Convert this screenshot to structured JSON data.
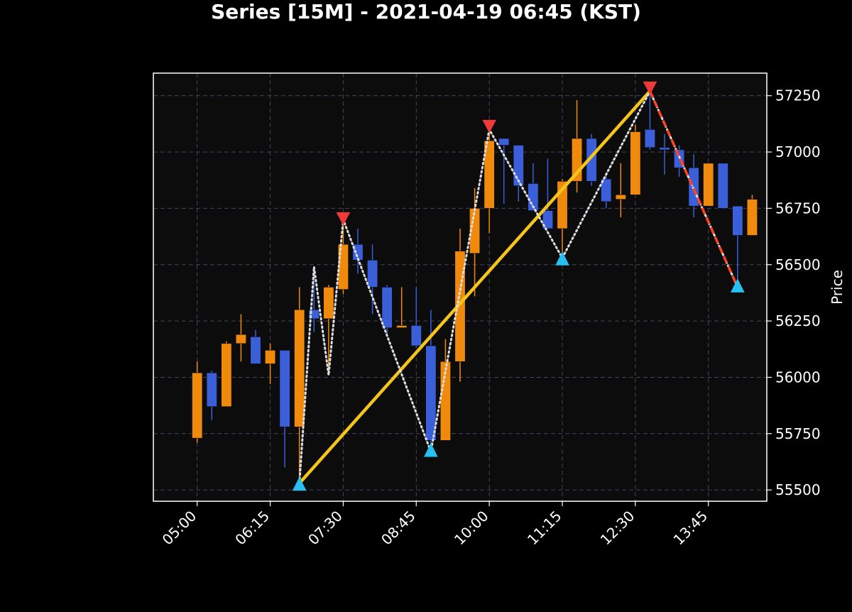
{
  "chart_data": {
    "type": "candlestick",
    "title": "Series [15M] - 2021-04-19 06:45 (KST)",
    "xlabel": "",
    "ylabel": "Price",
    "interval_minutes": 15,
    "x_tick_labels": [
      "05:00",
      "06:15",
      "07:30",
      "08:45",
      "10:00",
      "11:15",
      "12:30",
      "13:45"
    ],
    "y_ticks": [
      55500,
      55750,
      56000,
      56250,
      56500,
      56750,
      57000,
      57250
    ],
    "ylim": [
      55450,
      57350
    ],
    "xlim": [
      "04:15",
      "14:45"
    ],
    "grid": true,
    "colors": {
      "background": "#000000",
      "plot_background": "#0c0c0c",
      "grid": "#44445a",
      "up": "#f08a0c",
      "down": "#3b5fd9",
      "trend_line": "#f5c518",
      "zigzag": "#dddddd",
      "dashed_line": "#ff4422",
      "peak_marker": "#f03a3a",
      "trough_marker": "#27c0f0"
    },
    "candles": [
      {
        "time": "05:00",
        "open": 55730,
        "high": 56070,
        "low": 55710,
        "close": 56020
      },
      {
        "time": "05:15",
        "open": 56020,
        "high": 56030,
        "low": 55810,
        "close": 55870
      },
      {
        "time": "05:30",
        "open": 55870,
        "high": 56160,
        "low": 55870,
        "close": 56150
      },
      {
        "time": "05:45",
        "open": 56150,
        "high": 56280,
        "low": 56070,
        "close": 56190
      },
      {
        "time": "06:00",
        "open": 56180,
        "high": 56210,
        "low": 56060,
        "close": 56060
      },
      {
        "time": "06:15",
        "open": 56060,
        "high": 56150,
        "low": 55970,
        "close": 56120
      },
      {
        "time": "06:30",
        "open": 56120,
        "high": 56120,
        "low": 55600,
        "close": 55780
      },
      {
        "time": "06:45",
        "open": 55780,
        "high": 56400,
        "low": 55560,
        "close": 56300
      },
      {
        "time": "07:00",
        "open": 56300,
        "high": 56490,
        "low": 56200,
        "close": 56260
      },
      {
        "time": "07:15",
        "open": 56260,
        "high": 56410,
        "low": 56010,
        "close": 56400
      },
      {
        "time": "07:30",
        "open": 56390,
        "high": 56700,
        "low": 56370,
        "close": 56590
      },
      {
        "time": "07:45",
        "open": 56590,
        "high": 56660,
        "low": 56460,
        "close": 56520
      },
      {
        "time": "08:00",
        "open": 56520,
        "high": 56590,
        "low": 56280,
        "close": 56400
      },
      {
        "time": "08:15",
        "open": 56400,
        "high": 56410,
        "low": 56190,
        "close": 56220
      },
      {
        "time": "08:30",
        "open": 56220,
        "high": 56400,
        "low": 56220,
        "close": 56230
      },
      {
        "time": "08:45",
        "open": 56230,
        "high": 56400,
        "low": 56130,
        "close": 56140
      },
      {
        "time": "09:00",
        "open": 56140,
        "high": 56300,
        "low": 55690,
        "close": 55720
      },
      {
        "time": "09:15",
        "open": 55720,
        "high": 56170,
        "low": 55720,
        "close": 56070
      },
      {
        "time": "09:30",
        "open": 56070,
        "high": 56660,
        "low": 55980,
        "close": 56560
      },
      {
        "time": "09:45",
        "open": 56550,
        "high": 56840,
        "low": 56360,
        "close": 56750
      },
      {
        "time": "10:00",
        "open": 56750,
        "high": 57100,
        "low": 56640,
        "close": 57050
      },
      {
        "time": "10:15",
        "open": 57060,
        "high": 57060,
        "low": 56770,
        "close": 57030
      },
      {
        "time": "10:30",
        "open": 57030,
        "high": 57030,
        "low": 56780,
        "close": 56850
      },
      {
        "time": "10:45",
        "open": 56860,
        "high": 56950,
        "low": 56740,
        "close": 56740
      },
      {
        "time": "11:00",
        "open": 56740,
        "high": 56970,
        "low": 56660,
        "close": 56660
      },
      {
        "time": "11:15",
        "open": 56660,
        "high": 56880,
        "low": 56530,
        "close": 56870
      },
      {
        "time": "11:30",
        "open": 56870,
        "high": 57230,
        "low": 56820,
        "close": 57060
      },
      {
        "time": "11:45",
        "open": 57060,
        "high": 57080,
        "low": 56850,
        "close": 56870
      },
      {
        "time": "12:00",
        "open": 56880,
        "high": 56910,
        "low": 56750,
        "close": 56780
      },
      {
        "time": "12:15",
        "open": 56790,
        "high": 56950,
        "low": 56710,
        "close": 56810
      },
      {
        "time": "12:30",
        "open": 56810,
        "high": 57120,
        "low": 56810,
        "close": 57090
      },
      {
        "time": "12:45",
        "open": 57100,
        "high": 57260,
        "low": 57010,
        "close": 57020
      },
      {
        "time": "13:00",
        "open": 57020,
        "high": 57080,
        "low": 56900,
        "close": 57010
      },
      {
        "time": "13:15",
        "open": 57010,
        "high": 57030,
        "low": 56890,
        "close": 56930
      },
      {
        "time": "13:30",
        "open": 56930,
        "high": 56990,
        "low": 56710,
        "close": 56760
      },
      {
        "time": "13:45",
        "open": 56760,
        "high": 56950,
        "low": 56760,
        "close": 56950
      },
      {
        "time": "14:00",
        "open": 56950,
        "high": 56950,
        "low": 56750,
        "close": 56750
      },
      {
        "time": "14:15",
        "open": 56760,
        "high": 56760,
        "low": 56400,
        "close": 56630
      },
      {
        "time": "14:30",
        "open": 56630,
        "high": 56810,
        "low": 56630,
        "close": 56790
      }
    ],
    "zigzag": [
      {
        "time": "06:45",
        "price": 55530
      },
      {
        "time": "07:00",
        "price": 56490
      },
      {
        "time": "07:15",
        "price": 56010
      },
      {
        "time": "07:30",
        "price": 56700
      },
      {
        "time": "09:00",
        "price": 55670
      },
      {
        "time": "10:00",
        "price": 57100
      },
      {
        "time": "11:15",
        "price": 56530
      },
      {
        "time": "12:45",
        "price": 57270
      },
      {
        "time": "14:15",
        "price": 56400
      }
    ],
    "trend_line": [
      {
        "time": "06:45",
        "price": 55530
      },
      {
        "time": "12:45",
        "price": 57270
      }
    ],
    "dashed_line": [
      {
        "time": "12:45",
        "price": 57270
      },
      {
        "time": "14:15",
        "price": 56400
      }
    ],
    "peak_markers": [
      {
        "time": "07:30",
        "price": 56690
      },
      {
        "time": "10:00",
        "price": 57100
      },
      {
        "time": "12:45",
        "price": 57270
      }
    ],
    "trough_markers": [
      {
        "time": "06:45",
        "price": 55530
      },
      {
        "time": "09:00",
        "price": 55680
      },
      {
        "time": "11:15",
        "price": 56530
      },
      {
        "time": "14:15",
        "price": 56410
      }
    ]
  }
}
